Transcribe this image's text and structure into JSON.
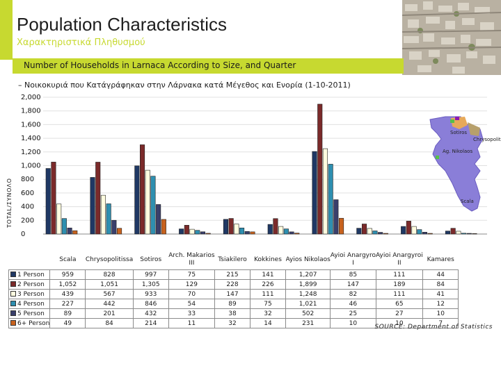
{
  "header": {
    "title": "Population Characteristics",
    "subtitle_greek": "Χαρακτηριστικά Πληθυσμού"
  },
  "band": {
    "text": "Number of Households in Larnaca According to Size, and Quarter"
  },
  "subtitle": "– Νοικοκυριά που Κατάγράφηκαν στην Λάρνακα κατά Μέγεθος και Ενορία (1-10-2011)",
  "chart_data": {
    "type": "bar",
    "ylabel": "TOTAL/ΣΥΝΟΛΟ",
    "ylim": [
      0,
      2000
    ],
    "yticks": [
      "2,000",
      "1,800",
      "1,600",
      "1,400",
      "1,200",
      "1,000",
      "800",
      "600",
      "400",
      "200",
      "0"
    ],
    "categories": [
      "Scala",
      "Chrysopolitissa",
      "Sotiros",
      "Arch. Makarios III",
      "Tsiakilero",
      "Kokkines",
      "Ayios Nikolaos",
      "Ayioi Anargyroi I",
      "Ayioi Anargyroi II",
      "Kamares"
    ],
    "series": [
      {
        "name": "1 Person",
        "color": "#1f3864",
        "values": [
          959,
          828,
          997,
          75,
          215,
          141,
          1207,
          85,
          111,
          44
        ],
        "labels": [
          "959",
          "828",
          "997",
          "75",
          "215",
          "141",
          "1,207",
          "85",
          "111",
          "44"
        ]
      },
      {
        "name": "2 Person",
        "color": "#7b2a2a",
        "values": [
          1052,
          1051,
          1305,
          129,
          228,
          226,
          1899,
          147,
          189,
          84
        ],
        "labels": [
          "1,052",
          "1,051",
          "1,305",
          "129",
          "228",
          "226",
          "1,899",
          "147",
          "189",
          "84"
        ]
      },
      {
        "name": "3 Person",
        "color": "#fffde0",
        "values": [
          439,
          567,
          933,
          70,
          147,
          111,
          1248,
          82,
          111,
          41
        ],
        "labels": [
          "439",
          "567",
          "933",
          "70",
          "147",
          "111",
          "1,248",
          "82",
          "111",
          "41"
        ]
      },
      {
        "name": "4 Person",
        "color": "#2e8fb0",
        "values": [
          227,
          442,
          846,
          54,
          89,
          75,
          1021,
          46,
          65,
          12
        ],
        "labels": [
          "227",
          "442",
          "846",
          "54",
          "89",
          "75",
          "1,021",
          "46",
          "65",
          "12"
        ]
      },
      {
        "name": "5 Person",
        "color": "#3a3f6b",
        "values": [
          89,
          201,
          432,
          33,
          38,
          32,
          502,
          25,
          27,
          10
        ],
        "labels": [
          "89",
          "201",
          "432",
          "33",
          "38",
          "32",
          "502",
          "25",
          "27",
          "10"
        ]
      },
      {
        "name": "6+ Person",
        "color": "#c8621e",
        "values": [
          49,
          84,
          214,
          11,
          32,
          14,
          231,
          10,
          10,
          7
        ],
        "labels": [
          "49",
          "84",
          "214",
          "11",
          "32",
          "14",
          "231",
          "10",
          "10",
          "7"
        ]
      }
    ],
    "map_labels": [
      "Sotiros",
      "Chrysopolitissa",
      "Ag. Nikolaos",
      "Scala"
    ],
    "category_display": [
      [
        "Scala"
      ],
      [
        "Chrysopolitissa"
      ],
      [
        "Sotiros"
      ],
      [
        "Arch. Makarios",
        "III"
      ],
      [
        "Tsiakilero"
      ],
      [
        "Kokkines"
      ],
      [
        "Ayios Nikolaos"
      ],
      [
        "Ayioi Anargyro",
        "I"
      ],
      [
        "Ayioi Anargyroi",
        "II"
      ],
      [
        "Kamares"
      ]
    ]
  },
  "source": "SOURCE: Department of Statistics"
}
